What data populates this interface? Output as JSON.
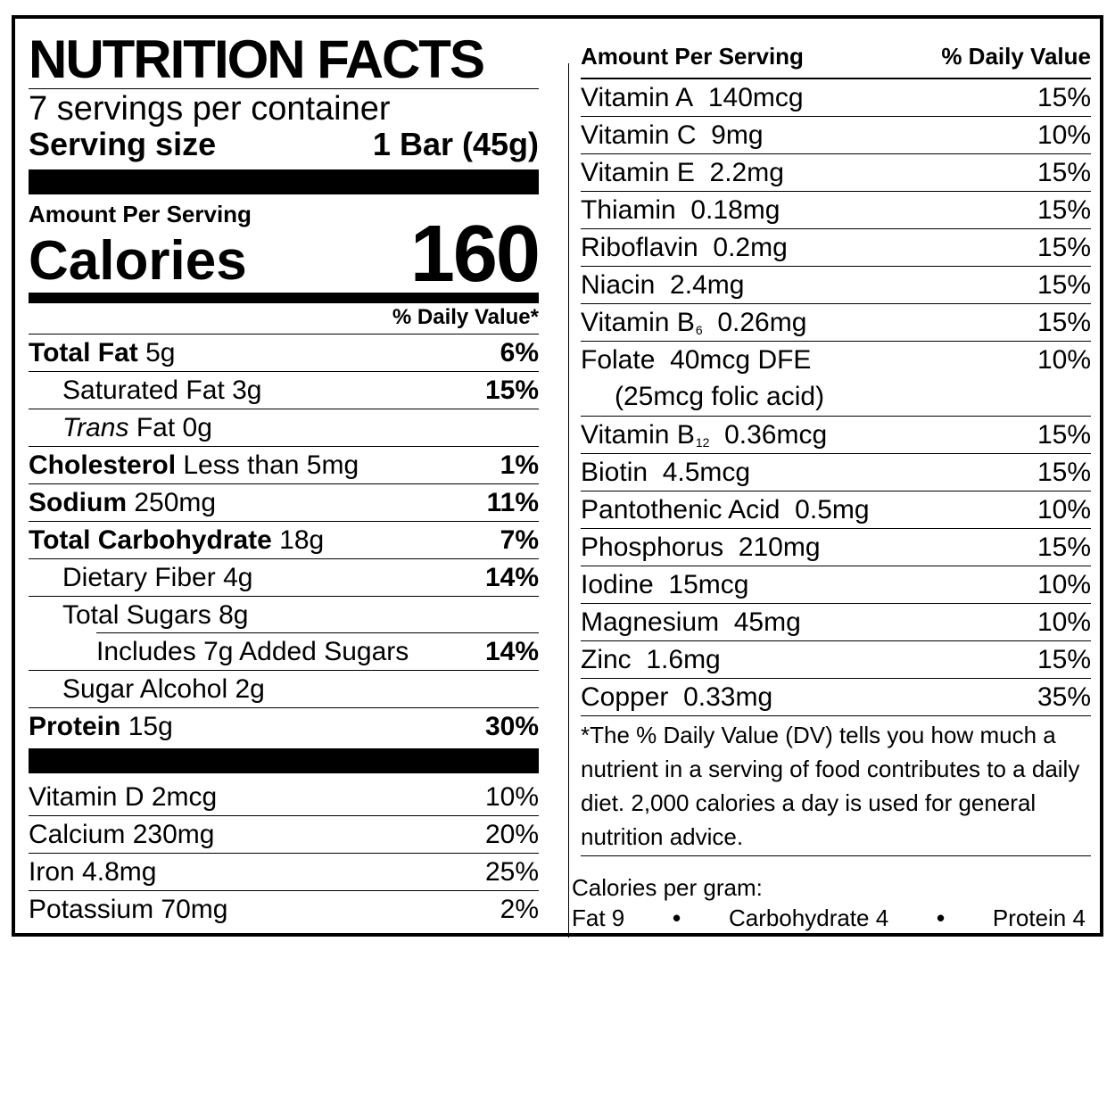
{
  "header": {
    "title": "NUTRITION FACTS",
    "servings_per_container": "7 servings per container",
    "serving_size_label": "Serving size",
    "serving_size_value": "1 Bar (45g)"
  },
  "calories": {
    "amount_label": "Amount Per Serving",
    "label": "Calories",
    "value": "160"
  },
  "daily_value_header": "% Daily Value*",
  "nutrients": [
    {
      "name": "Total Fat",
      "amount": "5g",
      "dv": "6%"
    },
    {
      "name": "Saturated Fat",
      "amount": "3g",
      "dv": "15%"
    },
    {
      "name": "Trans",
      "name_rest": "Fat",
      "amount": "0g",
      "dv": ""
    },
    {
      "name": "Cholesterol",
      "amount": "Less than 5mg",
      "dv": "1%"
    },
    {
      "name": "Sodium",
      "amount": "250mg",
      "dv": "11%"
    },
    {
      "name": "Total Carbohydrate",
      "amount": "18g",
      "dv": "7%"
    },
    {
      "name": "Dietary Fiber",
      "amount": "4g",
      "dv": "14%"
    },
    {
      "name": "Total Sugars",
      "amount": "8g",
      "dv": ""
    },
    {
      "name": "Includes 7g Added Sugars",
      "amount": "",
      "dv": "14%"
    },
    {
      "name": "Sugar Alcohol",
      "amount": "2g",
      "dv": ""
    },
    {
      "name": "Protein",
      "amount": "15g",
      "dv": "30%"
    }
  ],
  "minerals_left": [
    {
      "name": "Vitamin D",
      "amount": "2mcg",
      "dv": "10%"
    },
    {
      "name": "Calcium",
      "amount": "230mg",
      "dv": "20%"
    },
    {
      "name": "Iron",
      "amount": "4.8mg",
      "dv": "25%"
    },
    {
      "name": "Potassium",
      "amount": "70mg",
      "dv": "2%"
    }
  ],
  "right_header": {
    "amount": "Amount Per Serving",
    "dv": "% Daily Value"
  },
  "vitamins_right": [
    {
      "name": "Vitamin A",
      "amount": "140mcg",
      "dv": "15%"
    },
    {
      "name": "Vitamin C",
      "amount": "9mg",
      "dv": "10%"
    },
    {
      "name": "Vitamin E",
      "amount": "2.2mg",
      "dv": "15%"
    },
    {
      "name": "Thiamin",
      "amount": "0.18mg",
      "dv": "15%"
    },
    {
      "name": "Riboflavin",
      "amount": "0.2mg",
      "dv": "15%"
    },
    {
      "name": "Niacin",
      "amount": "2.4mg",
      "dv": "15%"
    },
    {
      "name": "Vitamin B",
      "sub": "6",
      "amount": "0.26mg",
      "dv": "15%"
    },
    {
      "name": "Folate",
      "amount": "40mcg DFE",
      "extra": "(25mcg folic acid)",
      "dv": "10%"
    },
    {
      "name": "Vitamin B",
      "sub": "12",
      "amount": "0.36mcg",
      "dv": "15%"
    },
    {
      "name": "Biotin",
      "amount": "4.5mcg",
      "dv": "15%"
    },
    {
      "name": "Pantothenic Acid",
      "amount": "0.5mg",
      "dv": "10%"
    },
    {
      "name": "Phosphorus",
      "amount": "210mg",
      "dv": "15%"
    },
    {
      "name": "Iodine",
      "amount": "15mcg",
      "dv": "10%"
    },
    {
      "name": "Magnesium",
      "amount": "45mg",
      "dv": "10%"
    },
    {
      "name": "Zinc",
      "amount": "1.6mg",
      "dv": "15%"
    },
    {
      "name": "Copper",
      "amount": "0.33mg",
      "dv": "35%"
    }
  ],
  "footnote": "*The % Daily Value (DV) tells you how much a nutrient in a serving of food contributes to a daily diet. 2,000 calories a day is used for general nutrition advice.",
  "calories_per_gram": {
    "label": "Calories per gram:",
    "fat": "Fat 9",
    "carbohydrate": "Carbohydrate 4",
    "protein": "Protein 4",
    "separator": "•"
  }
}
